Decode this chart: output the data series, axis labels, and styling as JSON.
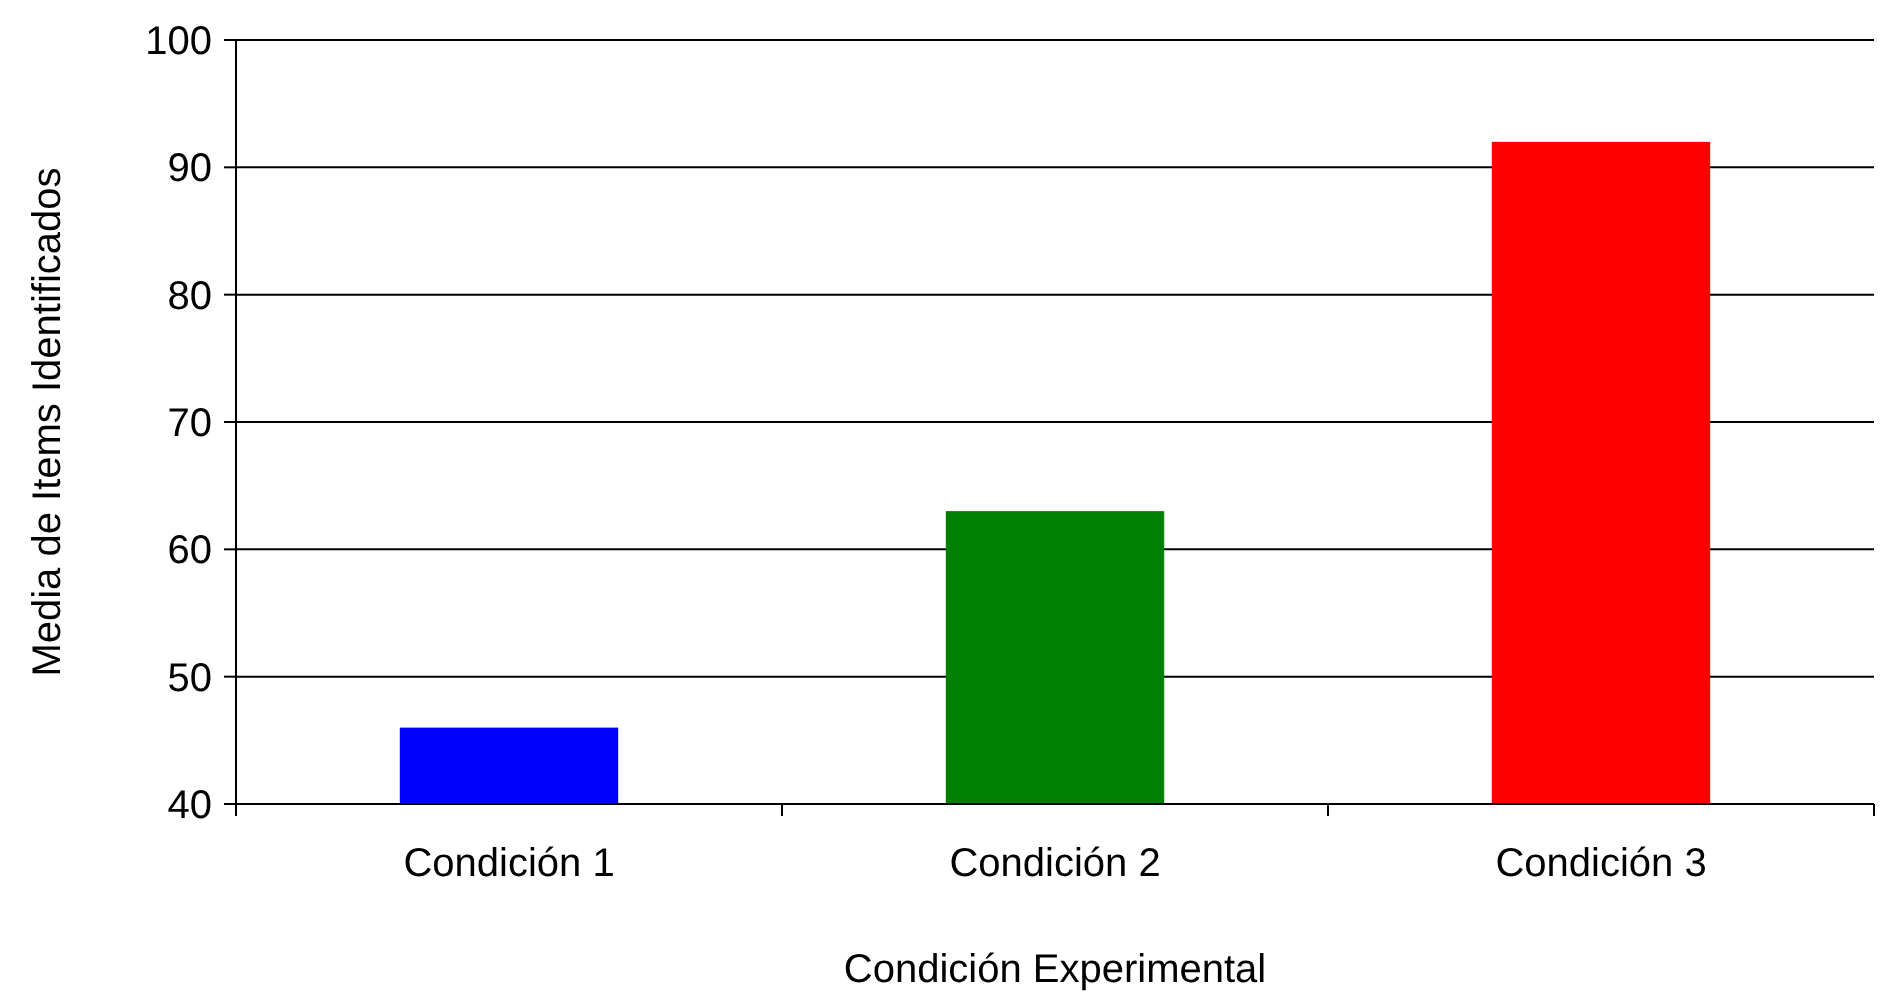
{
  "chart_data": {
    "type": "bar",
    "xlabel": "Condición Experimental",
    "ylabel": "Media de Items Identificados",
    "categories": [
      "Condición 1",
      "Condición 2",
      "Condición 3"
    ],
    "values": [
      46,
      63,
      92
    ],
    "colors": [
      "#0000ff",
      "#008000",
      "#ff0000"
    ],
    "ylim": [
      40,
      100
    ],
    "yticks": [
      40,
      50,
      60,
      70,
      80,
      90,
      100
    ],
    "grid": "y"
  }
}
